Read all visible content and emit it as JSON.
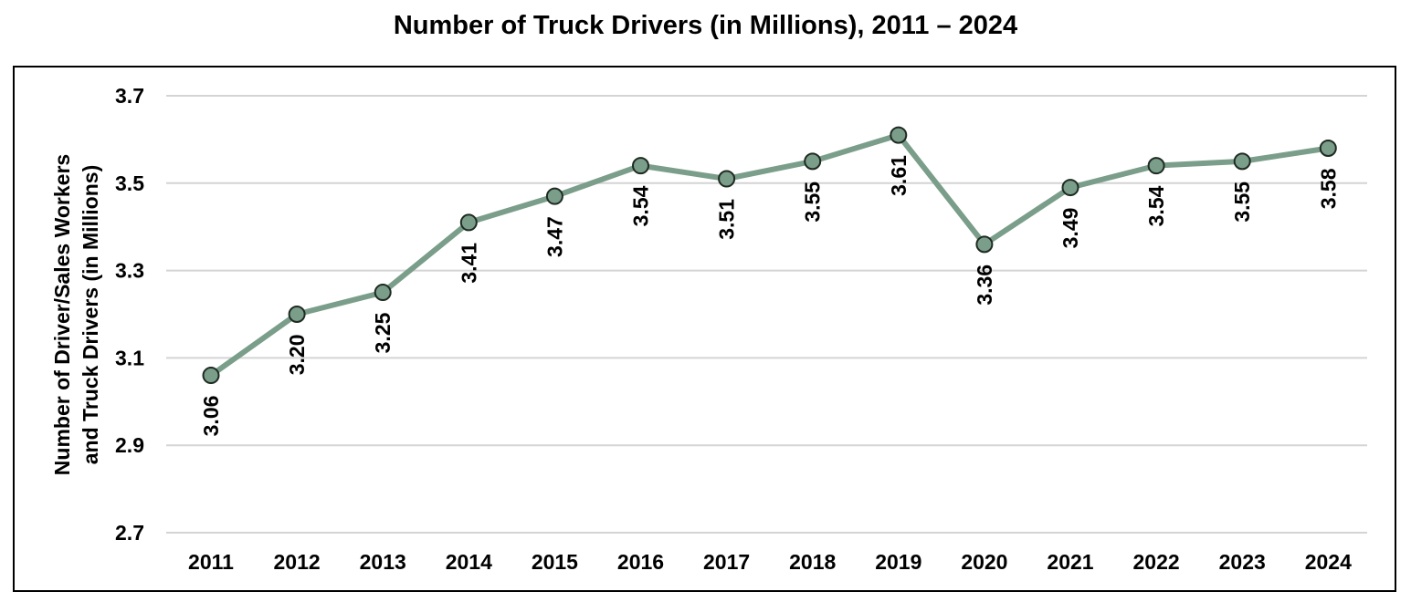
{
  "chart_data": {
    "type": "line",
    "title": "Number of Truck Drivers (in Millions), 2011 – 2024",
    "xlabel": "",
    "ylabel_lines": [
      "Number of Driver/Sales Workers",
      "and Truck Drivers (in Millions)"
    ],
    "categories": [
      "2011",
      "2012",
      "2013",
      "2014",
      "2015",
      "2016",
      "2017",
      "2018",
      "2019",
      "2020",
      "2021",
      "2022",
      "2023",
      "2024"
    ],
    "series": [
      {
        "name": "Truck Drivers",
        "values": [
          3.06,
          3.2,
          3.25,
          3.41,
          3.47,
          3.54,
          3.51,
          3.55,
          3.61,
          3.36,
          3.49,
          3.54,
          3.55,
          3.58
        ],
        "labels": [
          "3.06",
          "3.20",
          "3.25",
          "3.41",
          "3.47",
          "3.54",
          "3.51",
          "3.55",
          "3.61",
          "3.36",
          "3.49",
          "3.54",
          "3.55",
          "3.58"
        ]
      }
    ],
    "ylim": [
      2.7,
      3.7
    ],
    "yticks": [
      2.7,
      2.9,
      3.1,
      3.3,
      3.5,
      3.7
    ],
    "ytick_labels": [
      "2.7",
      "2.9",
      "3.1",
      "3.3",
      "3.5",
      "3.7"
    ],
    "grid": true,
    "legend": "none",
    "colors": {
      "line": "#7a9e8a",
      "marker_fill": "#7a9e8a",
      "marker_edge": "#1f2a22",
      "grid": "#d4d4d4"
    }
  }
}
